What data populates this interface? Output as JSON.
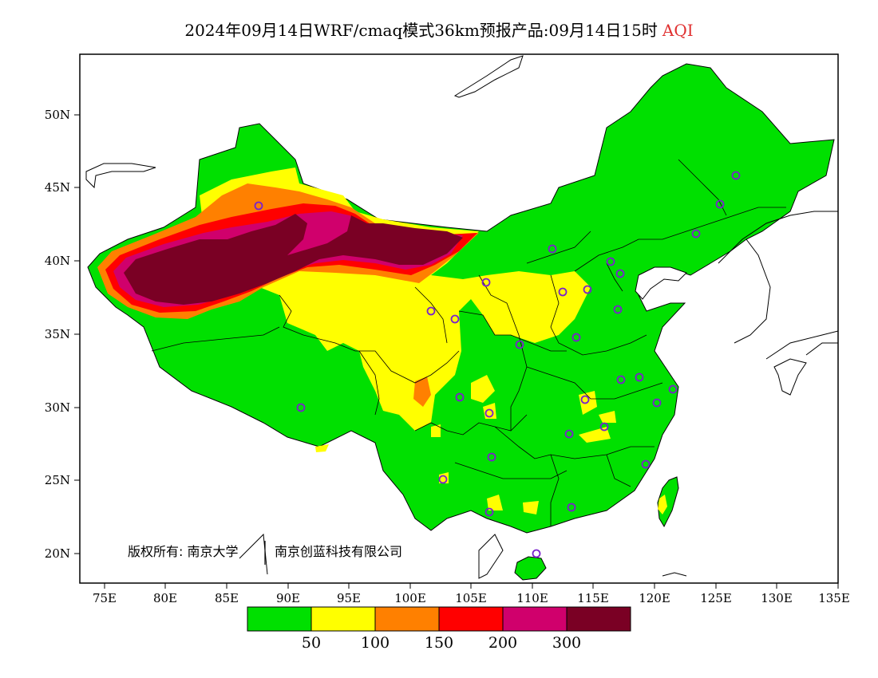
{
  "title": {
    "main": "2024年09月14日WRF/cmaq模式36km预报产品:09月14日15时",
    "variable": "AQI"
  },
  "axes": {
    "lat_labels": [
      "50N",
      "45N",
      "40N",
      "35N",
      "30N",
      "25N",
      "20N"
    ],
    "lon_labels": [
      "75E",
      "80E",
      "85E",
      "90E",
      "95E",
      "100E",
      "105E",
      "110E",
      "115E",
      "120E",
      "125E",
      "130E",
      "135E"
    ],
    "lon_range": [
      73,
      135
    ],
    "lat_range": [
      18,
      54
    ]
  },
  "colorbar": {
    "colors": [
      "#00e000",
      "#ffff00",
      "#ff8000",
      "#ff0000",
      "#d0006c",
      "#7a0024"
    ],
    "labels": [
      "50",
      "100",
      "150",
      "200",
      "300"
    ]
  },
  "copyright": {
    "left": "版权所有: 南京大学",
    "right": "南京创蓝科技有限公司"
  }
}
